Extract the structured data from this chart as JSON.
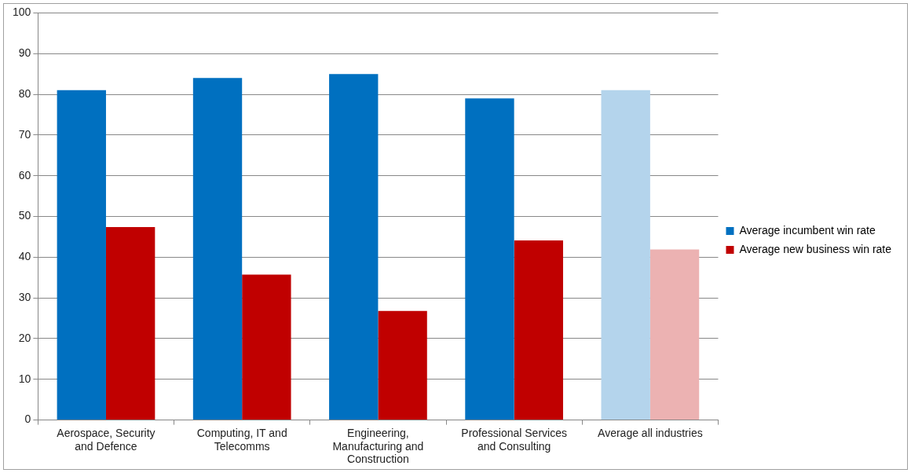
{
  "chart_data": {
    "type": "bar",
    "categories": [
      "Aerospace, Security and Defence",
      "Computing, IT and Telecomms",
      "Engineering, Manufacturing and Construction",
      "Professional Services and Consulting",
      "Average all industries"
    ],
    "series": [
      {
        "name": "Average incumbent win rate",
        "color": "#0070c0",
        "colors": [
          "#0070c0",
          "#0070c0",
          "#0070c0",
          "#0070c0",
          "#b4d4ec"
        ],
        "values": [
          81,
          84,
          85,
          79,
          81
        ]
      },
      {
        "name": "Average new business win rate",
        "color": "#c00000",
        "colors": [
          "#c00000",
          "#c00000",
          "#c00000",
          "#c00000",
          "#ecb2b2"
        ],
        "values": [
          47.4,
          35.7,
          26.8,
          44.1,
          41.9
        ]
      }
    ],
    "ylim": [
      0,
      100
    ],
    "yticks": [
      0,
      10,
      20,
      30,
      40,
      50,
      60,
      70,
      80,
      90,
      100
    ],
    "grid": "y",
    "legend": "right"
  }
}
